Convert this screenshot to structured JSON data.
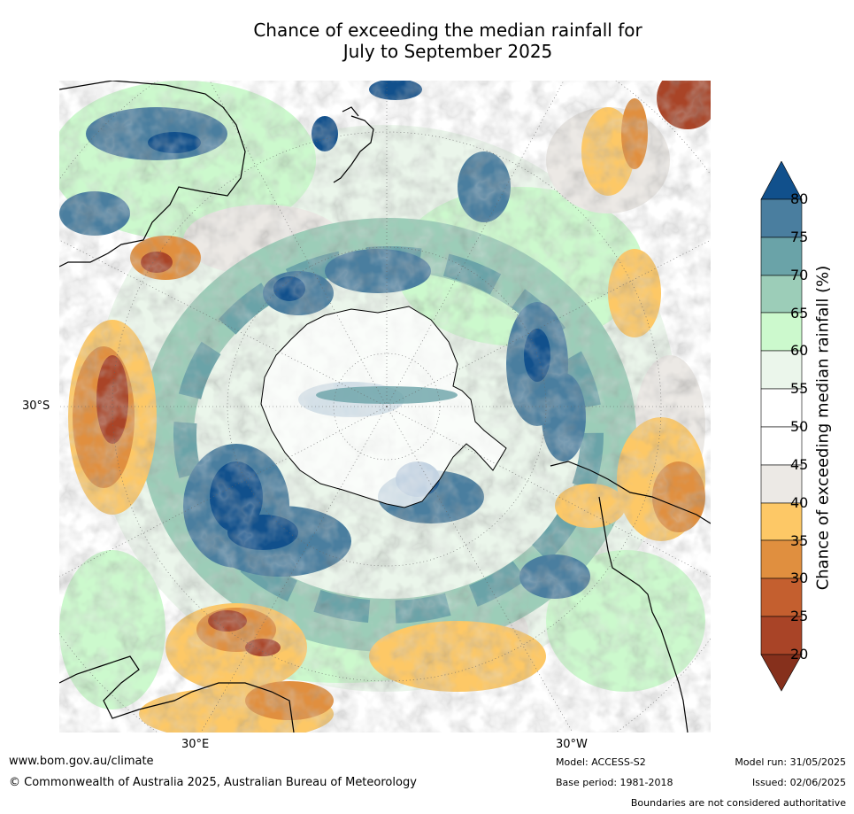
{
  "title_line1": "Chance of exceeding the median rainfall for",
  "title_line2": "July to September 2025",
  "map": {
    "projection": "south-polar-stereographic",
    "lat_label": "30°S",
    "lon_label_left": "30°E",
    "lon_label_right": "30°W",
    "ocean_color": "#ffffff",
    "coast_color": "#000000"
  },
  "colorbar": {
    "title": "Chance of exceeding median rainfall (%)",
    "ticks": [
      "80",
      "75",
      "70",
      "65",
      "60",
      "55",
      "50",
      "45",
      "40",
      "35",
      "30",
      "25",
      "20"
    ],
    "colors": {
      "over_80": "#11508c",
      "75_80": "#4a7e9f",
      "70_75": "#6aa3a8",
      "65_70": "#9ccdb8",
      "60_65": "#ccf9cd",
      "55_60": "#ebf6eb",
      "50_55": "#ffffff",
      "45_50": "#ffffff",
      "40_45": "#ece9e5",
      "35_40": "#fdc866",
      "30_35": "#e08f3f",
      "25_30": "#c45f2f",
      "20_25": "#a94427",
      "under_20": "#86301c"
    }
  },
  "footer": {
    "website": "www.bom.gov.au/climate",
    "copyright": "© Commonwealth of Australia 2025, Australian Bureau of Meteorology",
    "model": "Model: ACCESS-S2",
    "base_period": "Base period: 1981-2018",
    "model_run": "Model run: 31/05/2025",
    "issued": "Issued: 02/06/2025",
    "disclaimer": "Boundaries are not considered authoritative"
  }
}
